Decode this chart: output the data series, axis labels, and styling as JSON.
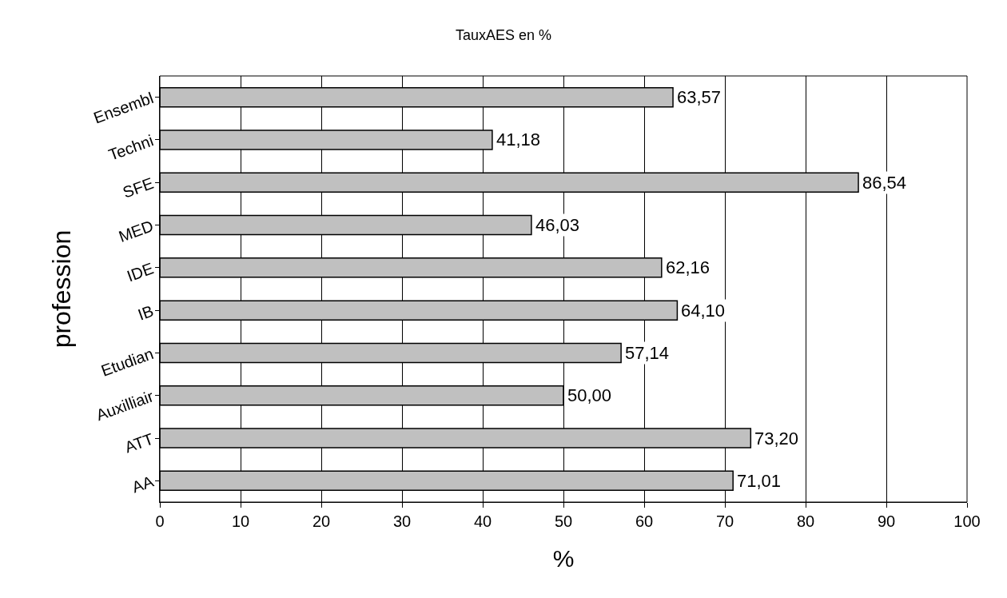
{
  "chart_data": {
    "type": "bar",
    "orientation": "horizontal",
    "title": "TauxAES en %",
    "xlabel": "%",
    "ylabel": "profession",
    "categories": [
      "Ensembl",
      "Techni",
      "SFE",
      "MED",
      "IDE",
      "IB",
      "Etudian",
      "Auxilliair",
      "ATT",
      "AA"
    ],
    "values": [
      63.57,
      41.18,
      86.54,
      46.03,
      62.16,
      64.1,
      57.14,
      50.0,
      73.2,
      71.01
    ],
    "value_labels": [
      "63,57",
      "41,18",
      "86,54",
      "46,03",
      "62,16",
      "64,10",
      "57,14",
      "50,00",
      "73,20",
      "71,01"
    ],
    "color": "#c0c0c0",
    "xlim": [
      0,
      100
    ],
    "xticks": [
      0,
      10,
      20,
      30,
      40,
      50,
      60,
      70,
      80,
      90,
      100
    ],
    "grid": "x"
  }
}
